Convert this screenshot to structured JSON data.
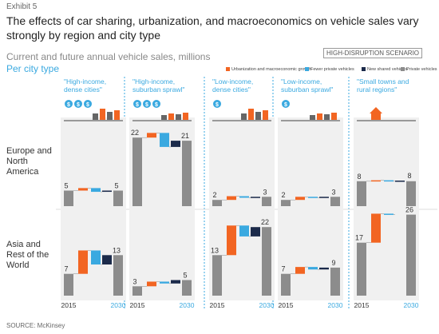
{
  "exhibit": "Exhibit 5",
  "title_line1": "The effects of car sharing, urbanization, and macroeconomics on vehicle sales vary",
  "title_line2": "strongly by region and city type",
  "subtitle": "Current and future annual vehicle sales, millions",
  "section_label": "Per city type",
  "scenario_badge": "HIGH-DISRUPTION SCENARIO",
  "source": "SOURCE: McKinsey",
  "colors": {
    "urbanization": "#f26522",
    "fewer_private": "#3aa9e0",
    "new_shared": "#1b2a4a",
    "private": "#8c8c8c",
    "panel": "#f0f0f0",
    "accent": "#3aa9e0"
  },
  "legend": [
    {
      "label": "Urbanization and macroeconomic growth",
      "color": "#f26522"
    },
    {
      "label": "Fewer private vehicles",
      "color": "#3aa9e0"
    },
    {
      "label": "New shared vehicles",
      "color": "#1b2a4a"
    },
    {
      "label": "Private vehicles",
      "color": "#8c8c8c"
    }
  ],
  "rows": [
    {
      "label": "Europe and North America"
    },
    {
      "label": "Asia and Rest of the World"
    }
  ],
  "x_labels": {
    "start": "2015",
    "end": "2030"
  },
  "chart_data": {
    "type": "bar",
    "subtype": "waterfall",
    "start_year": "2015",
    "end_year": "2030",
    "columns": [
      {
        "title": "\"High-income, dense cities\"",
        "icon": "dollar-icons-dense-city",
        "cells": [
          {
            "start": 5,
            "urbanization": 0.8,
            "fewer_private": -1.2,
            "new_shared": 0.4,
            "end": 5
          },
          {
            "start": 7,
            "urbanization": 7.5,
            "fewer_private": -4.5,
            "new_shared": 3,
            "end": 13
          }
        ]
      },
      {
        "title": "\"High-income, suburban sprawl\"",
        "icon": "dollar-icons-suburb",
        "cells": [
          {
            "start": 22,
            "urbanization": 1.5,
            "fewer_private": -4.5,
            "new_shared": 2,
            "end": 21
          },
          {
            "start": 3,
            "urbanization": 1.5,
            "fewer_private": -0.6,
            "new_shared": 1.1,
            "end": 5
          }
        ]
      },
      {
        "title": "\"Low-income, dense cities\"",
        "icon": "dollar-icon-dense-city",
        "cells": [
          {
            "start": 2,
            "urbanization": 1.2,
            "fewer_private": -0.5,
            "new_shared": 0.3,
            "end": 3
          },
          {
            "start": 13,
            "urbanization": 9.5,
            "fewer_private": -3.5,
            "new_shared": 3,
            "end": 22
          }
        ]
      },
      {
        "title": "\"Low-income, suburban sprawl\"",
        "icon": "dollar-icon-suburb",
        "cells": [
          {
            "start": 2,
            "urbanization": 1,
            "fewer_private": -0.3,
            "new_shared": 0.3,
            "end": 3
          },
          {
            "start": 7,
            "urbanization": 2.2,
            "fewer_private": -0.8,
            "new_shared": 0.6,
            "end": 9
          }
        ]
      },
      {
        "title": "\"Small towns and rural regions\"",
        "icon": "house-icon",
        "cells": [
          {
            "start": 8,
            "urbanization": 0.3,
            "fewer_private": -0.2,
            "new_shared": 0.1,
            "end": 8
          },
          {
            "start": 17,
            "urbanization": 9.3,
            "fewer_private": -0.3,
            "new_shared": 0,
            "end": 26
          }
        ]
      }
    ]
  }
}
